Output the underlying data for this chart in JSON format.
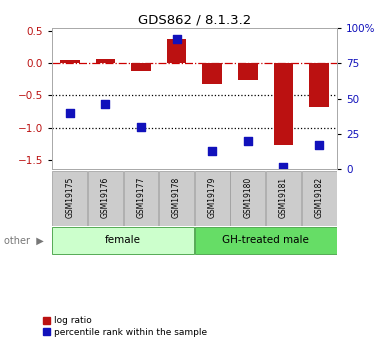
{
  "title": "GDS862 / 8.1.3.2",
  "samples": [
    "GSM19175",
    "GSM19176",
    "GSM19177",
    "GSM19178",
    "GSM19179",
    "GSM19180",
    "GSM19181",
    "GSM19182"
  ],
  "log_ratios": [
    0.05,
    0.07,
    -0.12,
    0.38,
    -0.33,
    -0.27,
    -1.27,
    -0.68
  ],
  "percentile_ranks": [
    40,
    46,
    30,
    92,
    13,
    20,
    2,
    17
  ],
  "ylim_left": [
    -1.65,
    0.55
  ],
  "ylim_right": [
    0,
    100
  ],
  "yticks_left": [
    0.5,
    0.0,
    -0.5,
    -1.0,
    -1.5
  ],
  "yticks_right": [
    100,
    75,
    50,
    25,
    0
  ],
  "bar_color": "#bb1111",
  "square_color": "#1111bb",
  "female_samples": [
    0,
    1,
    2,
    3
  ],
  "gh_treated_samples": [
    4,
    5,
    6,
    7
  ],
  "female_label": "female",
  "gh_label": "GH-treated male",
  "female_color": "#ccffcc",
  "gh_color": "#66dd66",
  "other_label": "other",
  "legend_log_ratio": "log ratio",
  "legend_percentile": "percentile rank within the sample",
  "bar_width": 0.55,
  "dotted_line_levels": [
    -0.5,
    -1.0
  ],
  "zero_line_color": "#cc0000",
  "background_color": "#ffffff"
}
